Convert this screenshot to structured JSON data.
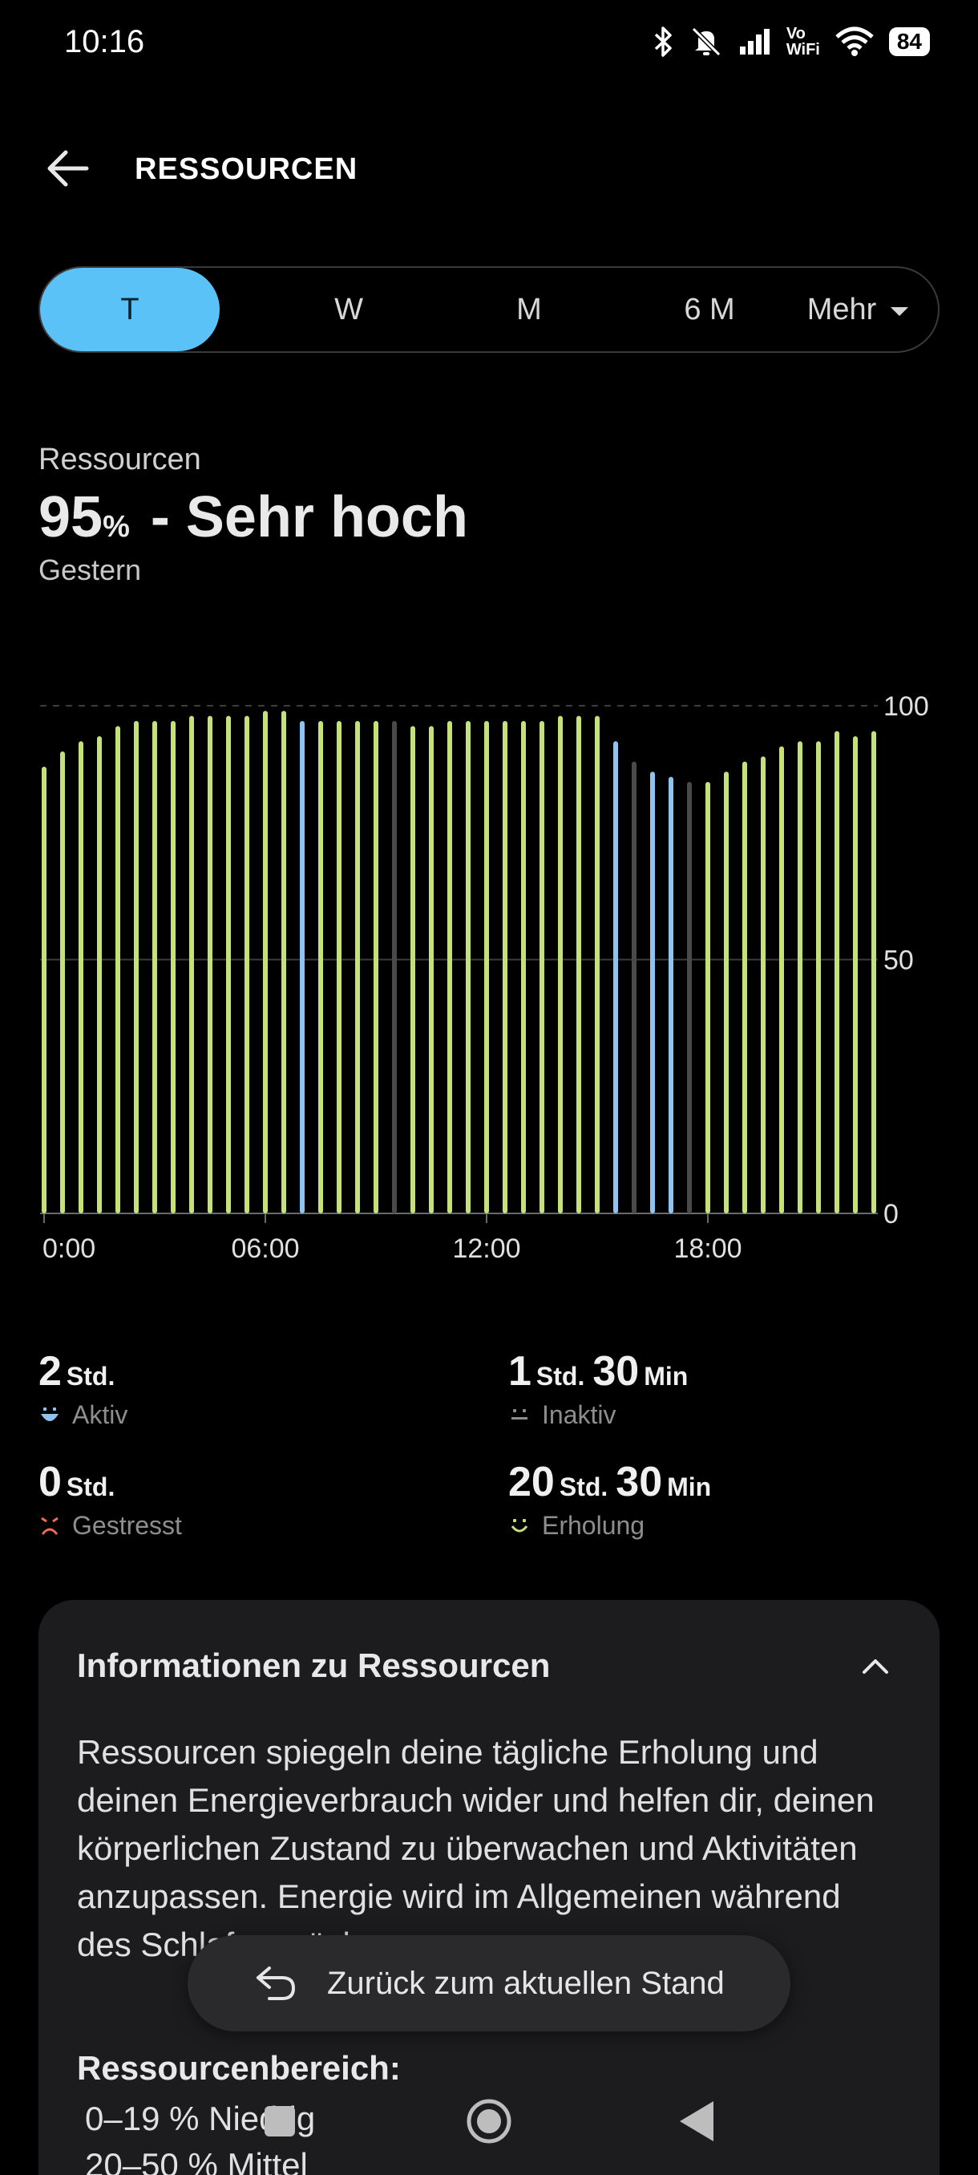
{
  "status_bar": {
    "time": "10:16",
    "vowifi_top": "Vo",
    "vowifi_bottom": "WiFi",
    "battery": "84",
    "icons": [
      "bluetooth-icon",
      "mute-icon",
      "signal-icon",
      "vowifi-icon",
      "wifi-icon",
      "battery-icon"
    ]
  },
  "header": {
    "title": "RESSOURCEN",
    "back_icon": "arrow-left-icon"
  },
  "tabs": [
    {
      "label": "T",
      "active": true
    },
    {
      "label": "W",
      "active": false
    },
    {
      "label": "M",
      "active": false
    },
    {
      "label": "6 M",
      "active": false
    },
    {
      "label": "Mehr",
      "active": false,
      "dropdown": true
    }
  ],
  "summary": {
    "label": "Ressourcen",
    "value": "95",
    "unit": "%",
    "level": " - Sehr hoch",
    "date": "Gestern"
  },
  "chart_data": {
    "type": "bar",
    "x_tick_labels": [
      "0:00",
      "06:00",
      "12:00",
      "18:00"
    ],
    "y_tick_labels": [
      "100",
      "50",
      "0"
    ],
    "ylim": [
      0,
      100
    ],
    "grid": true,
    "colors": {
      "erholung": "#c5e17a",
      "aktiv": "#8fc3f0",
      "inaktiv": "#4a4a4a"
    },
    "values": [
      88,
      91,
      93,
      94,
      96,
      97,
      97,
      97,
      98,
      98,
      98,
      98,
      99,
      99,
      97,
      97,
      97,
      97,
      97,
      97,
      96,
      96,
      97,
      97,
      97,
      97,
      97,
      97,
      98,
      98,
      98,
      93,
      89,
      87,
      86,
      85,
      85,
      87,
      89,
      90,
      92,
      93,
      93,
      95,
      94,
      95
    ],
    "states": [
      "e",
      "e",
      "e",
      "e",
      "e",
      "e",
      "e",
      "e",
      "e",
      "e",
      "e",
      "e",
      "e",
      "e",
      "a",
      "e",
      "e",
      "e",
      "e",
      "i",
      "e",
      "e",
      "e",
      "e",
      "e",
      "e",
      "e",
      "e",
      "e",
      "e",
      "e",
      "a",
      "i",
      "a",
      "a",
      "i",
      "e",
      "e",
      "e",
      "e",
      "e",
      "e",
      "e",
      "e",
      "e",
      "e"
    ]
  },
  "stats": [
    {
      "parts": [
        {
          "v": "2",
          "u": "Std."
        }
      ],
      "label": "Aktiv",
      "icon": "face-active-icon",
      "color": "#8fc3f0"
    },
    {
      "parts": [
        {
          "v": "1",
          "u": "Std."
        },
        {
          "v": "30",
          "u": "Min"
        }
      ],
      "label": "Inaktiv",
      "icon": "face-inactive-icon",
      "color": "#8e8e8e"
    },
    {
      "parts": [
        {
          "v": "0",
          "u": "Std."
        }
      ],
      "label": "Gestresst",
      "icon": "face-stressed-icon",
      "color": "#f06a5a"
    },
    {
      "parts": [
        {
          "v": "20",
          "u": "Std."
        },
        {
          "v": "30",
          "u": "Min"
        }
      ],
      "label": "Erholung",
      "icon": "face-recovery-icon",
      "color": "#c5e17a"
    }
  ],
  "info": {
    "title": "Informationen zu Ressourcen",
    "body": "Ressourcen spiegeln deine tägliche Erholung und deinen Energieverbrauch wider und helfen dir, deinen körperlichen Zustand zu überwachen und Aktivitäten anzupassen. Energie wird im Allgemeinen während des Schlafs zurückgewonnen.",
    "range_title": "Ressourcenbereich:",
    "ranges": [
      "0–19 % Niedrig",
      "20–50 % Mittel"
    ]
  },
  "pill": {
    "label": "Zurück zum aktuellen Stand"
  },
  "navbar": {
    "buttons": [
      "recents-icon",
      "home-icon",
      "back-triangle-icon"
    ]
  }
}
